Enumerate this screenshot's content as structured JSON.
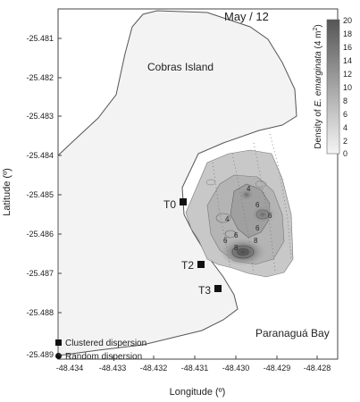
{
  "title": "May / 12",
  "island_label": "Cobras Island",
  "bay_label": "Paranaguá Bay",
  "y_axis_label": "Latitude (º)",
  "x_axis_label": "Longitude (º)",
  "y_ticks": [
    "-25.481",
    "-25.482",
    "-25.483",
    "-25.484",
    "-25.485",
    "-25.486",
    "-25.487",
    "-25.488",
    "-25.489"
  ],
  "x_ticks": [
    "-48.434",
    "-48.433",
    "-48.432",
    "-48.431",
    "-48.430",
    "-48.429",
    "-48.428"
  ],
  "colorbar": {
    "title_prefix": "Density of ",
    "title_species": "E. emarginata",
    "title_units": " (4 m",
    "title_sup": "2",
    "title_close": ")",
    "ticks": [
      "20",
      "18",
      "16",
      "14",
      "12",
      "10",
      "8",
      "6",
      "4",
      "2",
      "0"
    ]
  },
  "stations": [
    {
      "label": "T0"
    },
    {
      "label": "T2"
    },
    {
      "label": "T3"
    }
  ],
  "legend": [
    {
      "label": "Clustered dispersion",
      "marker": "square"
    },
    {
      "label": "Random dispersion",
      "marker": "circle"
    }
  ],
  "contour_labels": [
    "4",
    "6",
    "4",
    "6",
    "6",
    "6",
    "8",
    "8",
    "6"
  ],
  "colors": {
    "land": "#f2f2f2",
    "outline": "#555555",
    "density_low": "#eeeeee",
    "density_high": "#5a5a5a"
  }
}
